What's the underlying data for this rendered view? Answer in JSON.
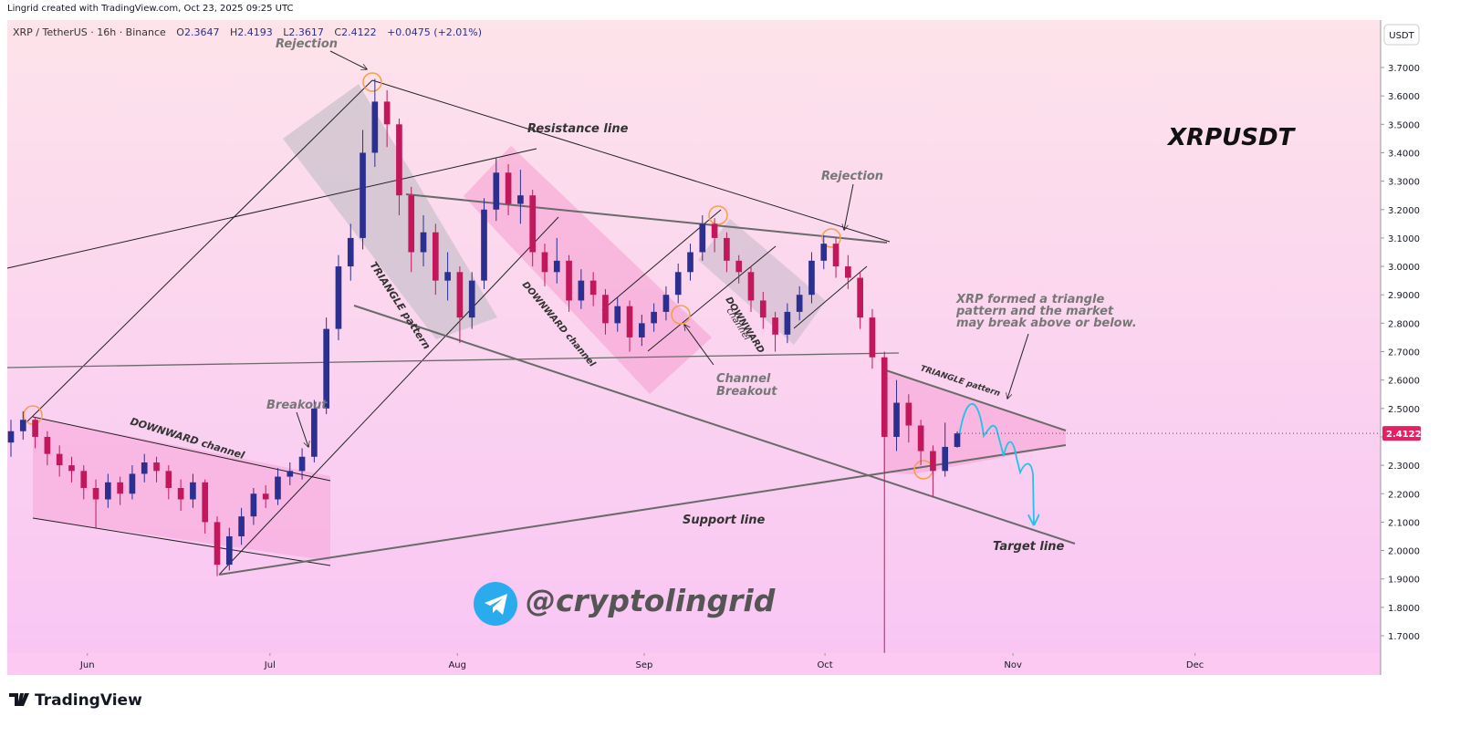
{
  "header": {
    "credit": "Lingrid created with TradingView.com, Oct 23, 2025 09:25 UTC"
  },
  "footer": {
    "brand": "TradingView"
  },
  "chart_data": {
    "type": "candlestick",
    "symbol": "XRP / TetherUS · 16h · Binance",
    "ohlc_keys": [
      "O",
      "H",
      "L",
      "C"
    ],
    "change": "+0.0475 (+2.01%)",
    "currency": "USDT",
    "up_color": "#2b2f8f",
    "down_color": "#c2185b",
    "open": [
      2.38,
      2.42,
      2.46,
      2.4,
      2.34,
      2.3,
      2.28,
      2.22,
      2.18,
      2.24,
      2.2,
      2.27,
      2.31,
      2.28,
      2.22,
      2.18,
      2.24,
      2.1,
      1.95,
      2.05,
      2.12,
      2.2,
      2.18,
      2.26,
      2.28,
      2.33,
      2.5,
      2.78,
      3.0,
      3.1,
      3.4,
      3.58,
      3.5,
      3.25,
      3.05,
      3.12,
      2.95,
      2.98,
      2.82,
      2.95,
      3.2,
      3.33,
      3.22,
      3.25,
      3.05,
      2.98,
      3.02,
      2.88,
      2.95,
      2.9,
      2.8,
      2.86,
      2.75,
      2.8,
      2.84,
      2.9,
      2.98,
      3.05,
      3.15,
      3.1,
      3.02,
      2.98,
      2.88,
      2.82,
      2.76,
      2.84,
      2.9,
      3.02,
      3.08,
      3.0,
      2.96,
      2.82,
      2.68,
      2.4,
      2.52,
      2.44,
      2.35,
      2.28,
      2.3647
    ],
    "high": [
      2.46,
      2.49,
      2.47,
      2.42,
      2.37,
      2.33,
      2.3,
      2.25,
      2.27,
      2.26,
      2.3,
      2.34,
      2.33,
      2.3,
      2.25,
      2.27,
      2.25,
      2.12,
      2.08,
      2.15,
      2.22,
      2.23,
      2.29,
      2.31,
      2.36,
      2.53,
      2.82,
      3.04,
      3.15,
      3.48,
      3.66,
      3.62,
      3.52,
      3.28,
      3.18,
      3.15,
      3.05,
      3.0,
      2.98,
      3.24,
      3.38,
      3.36,
      3.34,
      3.27,
      3.08,
      3.1,
      3.04,
      2.99,
      2.98,
      2.92,
      2.89,
      2.88,
      2.83,
      2.87,
      2.93,
      3.01,
      3.08,
      3.18,
      3.17,
      3.12,
      3.04,
      3.0,
      2.91,
      2.84,
      2.87,
      2.93,
      3.05,
      3.11,
      3.1,
      3.04,
      2.98,
      2.85,
      2.7,
      2.6,
      2.55,
      2.46,
      2.37,
      2.45,
      2.4193
    ],
    "low": [
      2.33,
      2.39,
      2.36,
      2.3,
      2.26,
      2.24,
      2.18,
      2.08,
      2.15,
      2.16,
      2.18,
      2.24,
      2.24,
      2.18,
      2.14,
      2.15,
      2.06,
      1.91,
      1.93,
      2.02,
      2.09,
      2.15,
      2.16,
      2.23,
      2.25,
      2.31,
      2.48,
      2.74,
      2.95,
      3.06,
      3.35,
      3.42,
      3.18,
      2.98,
      3.0,
      2.9,
      2.88,
      2.73,
      2.78,
      2.92,
      3.16,
      3.18,
      3.15,
      3.0,
      2.93,
      2.94,
      2.84,
      2.85,
      2.86,
      2.76,
      2.77,
      2.7,
      2.72,
      2.77,
      2.81,
      2.87,
      2.95,
      3.02,
      3.05,
      2.98,
      2.94,
      2.84,
      2.78,
      2.7,
      2.73,
      2.81,
      2.87,
      2.99,
      2.96,
      2.92,
      2.78,
      2.64,
      1.64,
      2.35,
      2.38,
      2.3,
      2.19,
      2.26,
      2.3617
    ],
    "close": [
      2.42,
      2.46,
      2.4,
      2.34,
      2.3,
      2.28,
      2.22,
      2.18,
      2.24,
      2.2,
      2.27,
      2.31,
      2.28,
      2.22,
      2.18,
      2.24,
      2.1,
      1.95,
      2.05,
      2.12,
      2.2,
      2.18,
      2.26,
      2.28,
      2.33,
      2.5,
      2.78,
      3.0,
      3.1,
      3.4,
      3.58,
      3.5,
      3.25,
      3.05,
      3.12,
      2.95,
      2.98,
      2.82,
      2.95,
      3.2,
      3.33,
      3.22,
      3.25,
      3.05,
      2.98,
      3.02,
      2.88,
      2.95,
      2.9,
      2.8,
      2.86,
      2.75,
      2.8,
      2.84,
      2.9,
      2.98,
      3.05,
      3.15,
      3.1,
      3.02,
      2.98,
      2.88,
      2.82,
      2.76,
      2.84,
      2.9,
      3.02,
      3.08,
      3.0,
      2.96,
      2.82,
      2.68,
      2.4,
      2.52,
      2.44,
      2.35,
      2.28,
      2.3647,
      2.4122
    ],
    "xlim": [
      -0.3,
      112.9
    ],
    "xticks": [
      {
        "value": 6.3,
        "label": "Jun"
      },
      {
        "value": 21.35,
        "label": "Jul"
      },
      {
        "value": 36.8,
        "label": "Aug"
      },
      {
        "value": 52.2,
        "label": "Sep"
      },
      {
        "value": 67.1,
        "label": "Oct"
      },
      {
        "value": 82.6,
        "label": "Nov"
      },
      {
        "value": 97.6,
        "label": "Dec"
      }
    ],
    "ylim": [
      1.639,
      3.867
    ],
    "yticks": [
      {
        "value": 1.7,
        "label": "1.7000"
      },
      {
        "value": 1.8,
        "label": "1.8000"
      },
      {
        "value": 1.9,
        "label": "1.9000"
      },
      {
        "value": 2.0,
        "label": "2.0000"
      },
      {
        "value": 2.1,
        "label": "2.1000"
      },
      {
        "value": 2.2,
        "label": "2.2000"
      },
      {
        "value": 2.3,
        "label": "2.3000"
      },
      {
        "value": 2.4,
        "label": "2.4000"
      },
      {
        "value": 2.5,
        "label": "2.5000"
      },
      {
        "value": 2.6,
        "label": "2.6000"
      },
      {
        "value": 2.7,
        "label": "2.7000"
      },
      {
        "value": 2.8,
        "label": "2.8000"
      },
      {
        "value": 2.9,
        "label": "2.9000"
      },
      {
        "value": 3.0,
        "label": "3.0000"
      },
      {
        "value": 3.1,
        "label": "3.1000"
      },
      {
        "value": 3.2,
        "label": "3.2000"
      },
      {
        "value": 3.3,
        "label": "3.3000"
      },
      {
        "value": 3.4,
        "label": "3.4000"
      },
      {
        "value": 3.5,
        "label": "3.5000"
      },
      {
        "value": 3.6,
        "label": "3.6000"
      },
      {
        "value": 3.7,
        "label": "3.7000"
      }
    ],
    "annotations": [
      "Rejection",
      "Resistance line",
      "XRPUSDT",
      "Rejection",
      "TRIANGLE pattern",
      "DOWNWARD channel",
      "DOWNWARD",
      "channel",
      "Channel",
      "Breakout",
      "XRP formed a triangle",
      "pattern and the market",
      "may break above or below.",
      "TRIANGLE pattern",
      "Breakout",
      "DOWNWARD channel",
      "Support line",
      "Target line",
      "@cryptolingrid"
    ]
  }
}
